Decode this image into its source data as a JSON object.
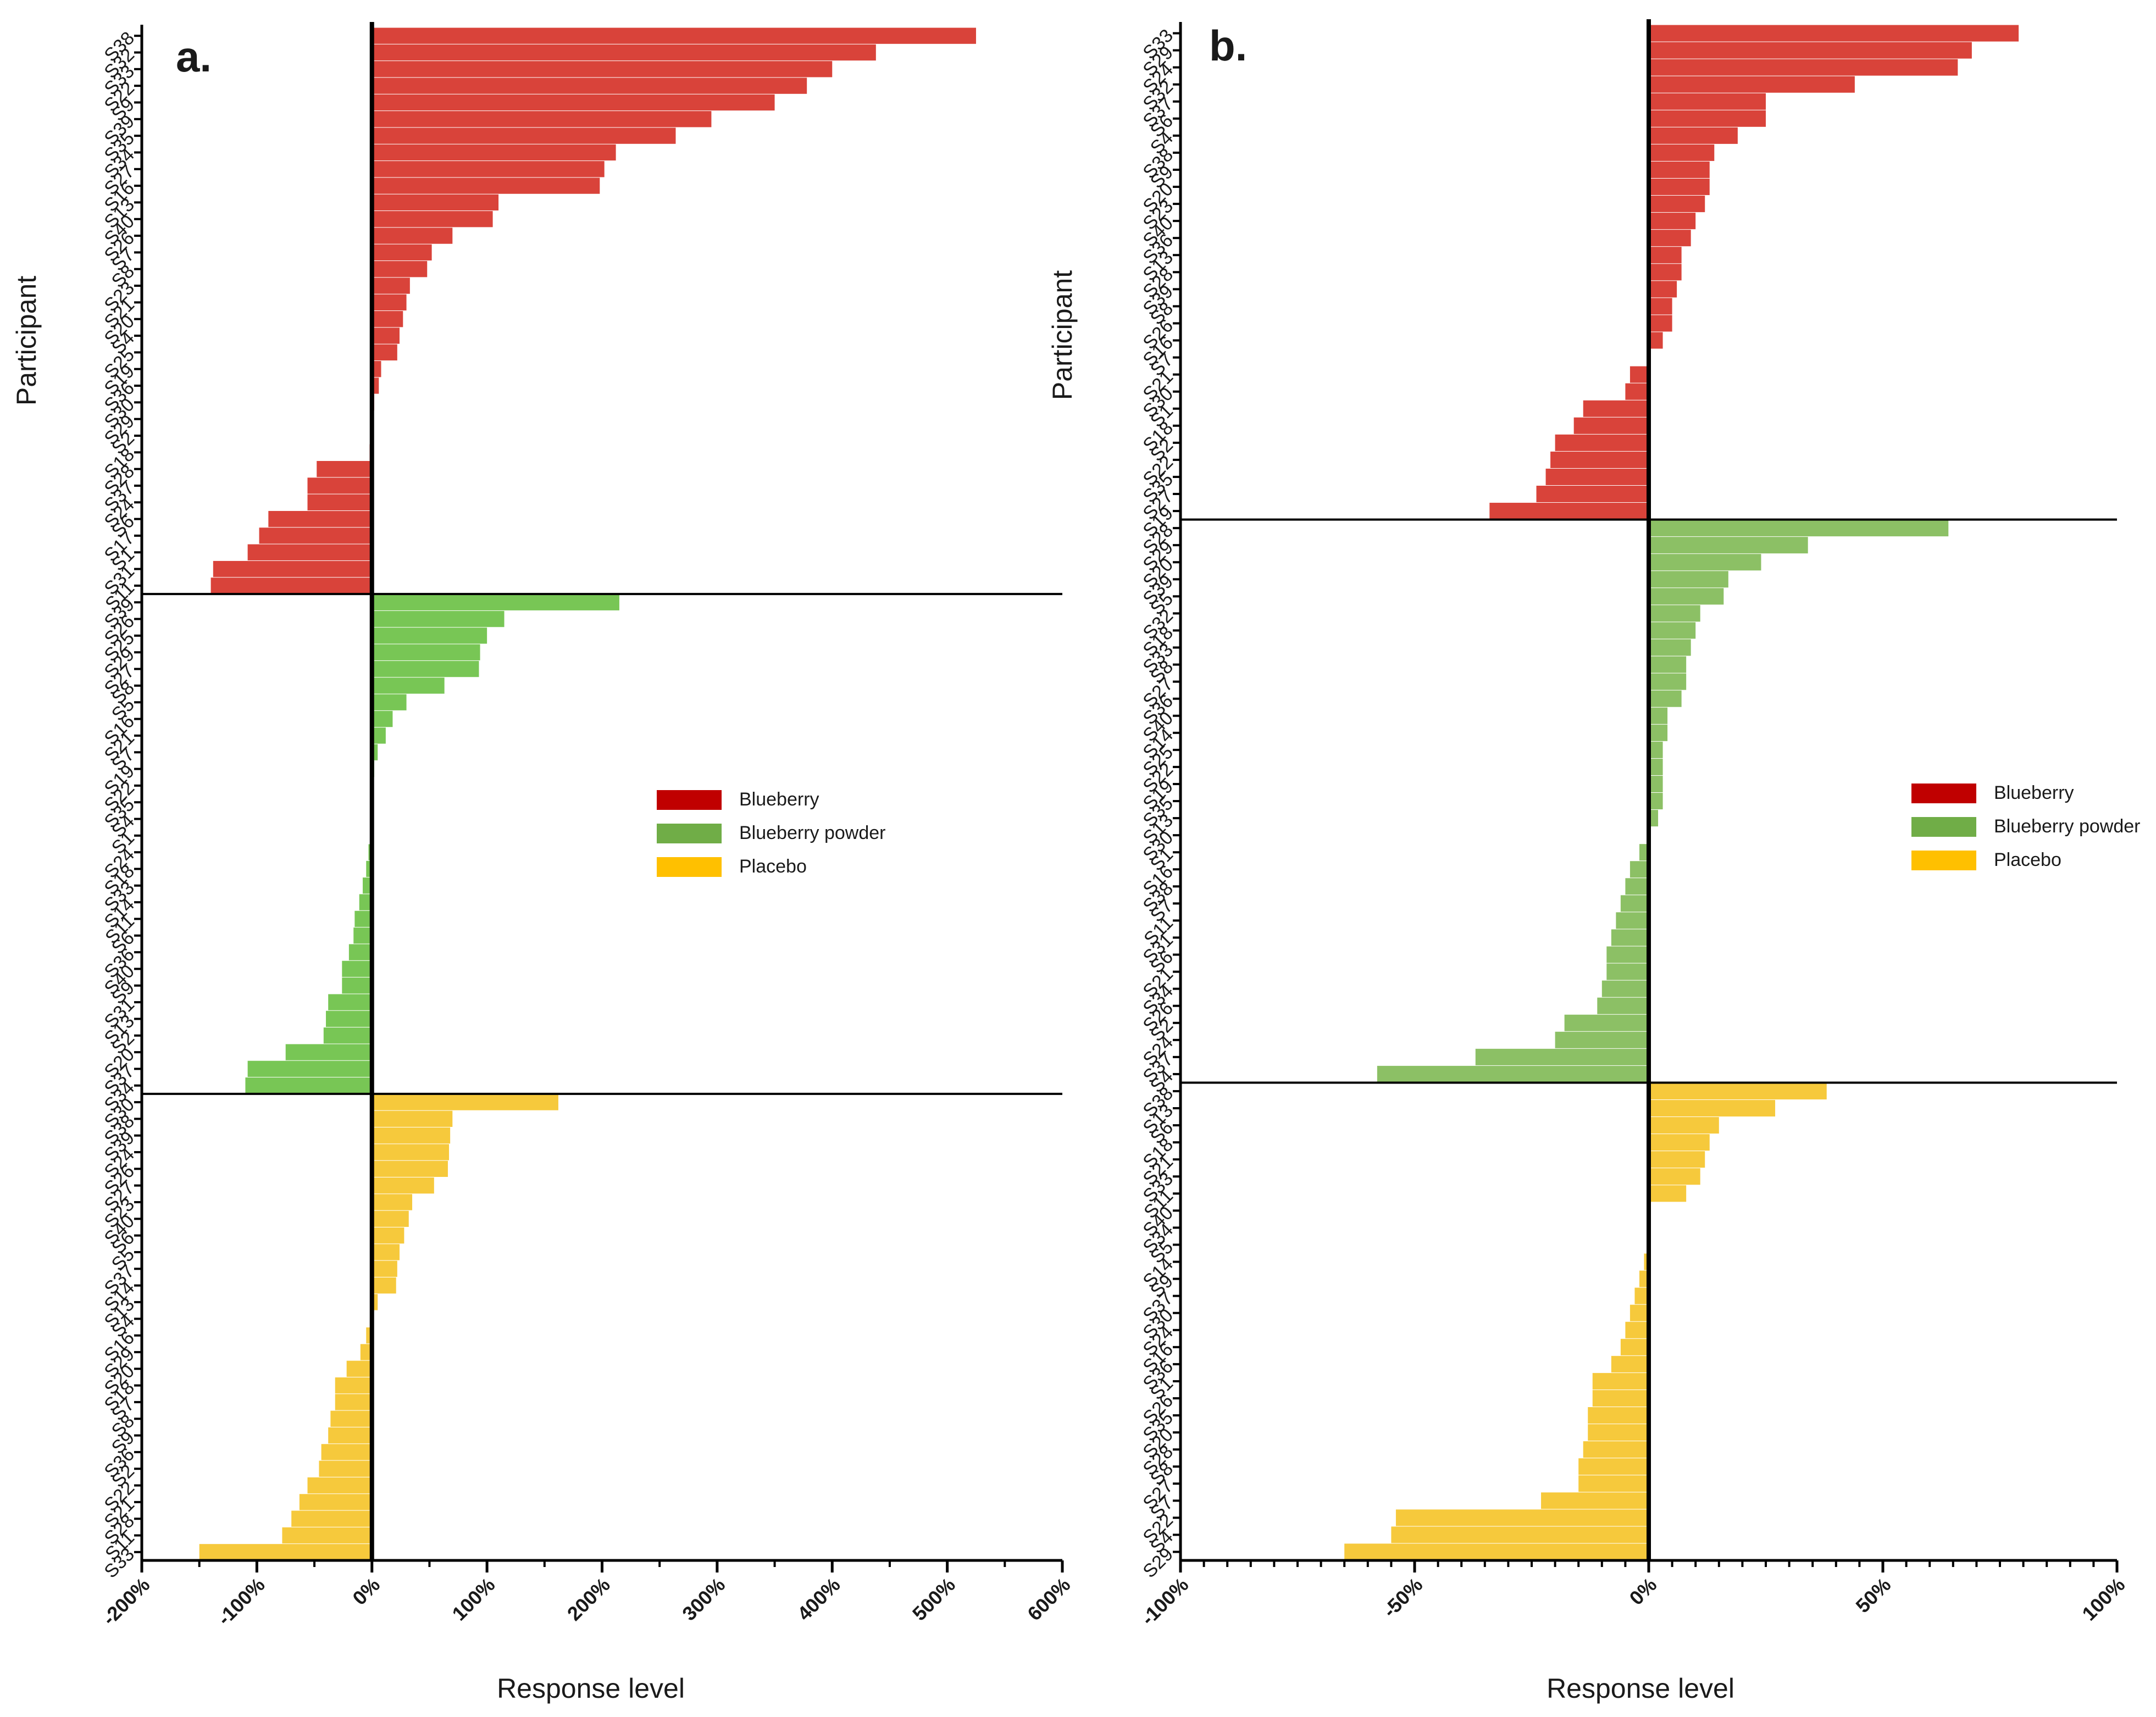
{
  "chart_data": [
    {
      "panel": "a.",
      "type": "bar",
      "orientation": "horizontal",
      "title": "",
      "xlabel": "Response level",
      "ylabel": "Participant",
      "xlim": [
        -200,
        600
      ],
      "xticks": [
        "-200%",
        "-100%",
        "0%",
        "100%",
        "200%",
        "300%",
        "400%",
        "500%",
        "600%"
      ],
      "legend": [
        "Blueberry",
        "Blueberry powder",
        "Placebo"
      ],
      "legend_position": "center-right",
      "colors": {
        "Blueberry": "#d9433a",
        "Blueberry powder": "#78c655",
        "Placebo": "#f6c93c"
      },
      "legend_colors": {
        "Blueberry": "#c00000",
        "Blueberry powder": "#70ad47",
        "Placebo": "#ffc000"
      },
      "groups": [
        {
          "name": "Blueberry",
          "participants": [
            "S38",
            "S32",
            "S33",
            "S22",
            "S9",
            "S39",
            "S35",
            "S34",
            "S27",
            "S16",
            "S13",
            "S40",
            "S26",
            "S7",
            "S8",
            "S23",
            "S21",
            "S20",
            "S4",
            "S25",
            "S19",
            "S36",
            "S30",
            "S29",
            "S2",
            "S18",
            "S28",
            "S37",
            "S24",
            "S6",
            "S17",
            "S1",
            "S31",
            "S11"
          ],
          "values": [
            525,
            438,
            400,
            378,
            350,
            295,
            264,
            212,
            202,
            198,
            110,
            105,
            70,
            52,
            48,
            33,
            30,
            27,
            24,
            22,
            8,
            6,
            2,
            1,
            0,
            -2,
            -48,
            -56,
            -56,
            -90,
            -98,
            -108,
            -138,
            -140
          ]
        },
        {
          "name": "Blueberry powder",
          "participants": [
            "S39",
            "S26",
            "S25",
            "S29",
            "S27",
            "S8",
            "S5",
            "S16",
            "S21",
            "S7",
            "S19",
            "S22",
            "S35",
            "S4",
            "S1",
            "S24",
            "S18",
            "S33",
            "S14",
            "S11",
            "S6",
            "S36",
            "S40",
            "S9",
            "S31",
            "S13",
            "S2",
            "S20",
            "S37",
            "S34"
          ],
          "values": [
            215,
            115,
            100,
            94,
            93,
            63,
            30,
            18,
            12,
            5,
            2,
            0,
            0,
            0,
            -1,
            -3,
            -5,
            -8,
            -11,
            -15,
            -16,
            -20,
            -26,
            -26,
            -38,
            -40,
            -42,
            -75,
            -108,
            -110
          ]
        },
        {
          "name": "Placebo",
          "participants": [
            "S30",
            "S38",
            "S39",
            "S24",
            "S26",
            "S27",
            "S23",
            "S40",
            "S6",
            "S5",
            "S37",
            "S14",
            "S13",
            "S4",
            "S16",
            "S29",
            "S20",
            "S18",
            "S7",
            "S8",
            "S9",
            "S36",
            "S2",
            "S22",
            "S21",
            "S28",
            "S11",
            "S33"
          ],
          "values": [
            162,
            70,
            68,
            67,
            66,
            54,
            35,
            32,
            28,
            24,
            22,
            21,
            5,
            0,
            -5,
            -10,
            -22,
            -32,
            -32,
            -36,
            -38,
            -44,
            -46,
            -56,
            -63,
            -70,
            -78,
            -150
          ]
        }
      ]
    },
    {
      "panel": "b.",
      "type": "bar",
      "orientation": "horizontal",
      "title": "",
      "xlabel": "Response level",
      "ylabel": "Participant",
      "xlim": [
        -100,
        100
      ],
      "xticks": [
        "-100%",
        "-50%",
        "0%",
        "50%",
        "100%"
      ],
      "legend": [
        "Blueberry",
        "Blueberry powder",
        "Placebo"
      ],
      "legend_position": "center-right",
      "colors": {
        "Blueberry": "#d9433a",
        "Blueberry powder": "#8cc065",
        "Placebo": "#f6c93c"
      },
      "legend_colors": {
        "Blueberry": "#c00000",
        "Blueberry powder": "#70ad47",
        "Placebo": "#ffc000"
      },
      "groups": [
        {
          "name": "Blueberry",
          "participants": [
            "S33",
            "S29",
            "S24",
            "S32",
            "S37",
            "S6",
            "S4",
            "S38",
            "S9",
            "S20",
            "S23",
            "S40",
            "S36",
            "S13",
            "S28",
            "S39",
            "S8",
            "S26",
            "S16",
            "S7",
            "S21",
            "S30",
            "S1",
            "S18",
            "S2",
            "S22",
            "S35",
            "S27",
            "S19"
          ],
          "values": [
            79,
            69,
            66,
            44,
            25,
            25,
            19,
            14,
            13,
            13,
            12,
            10,
            9,
            7,
            7,
            6,
            5,
            5,
            3,
            0,
            -4,
            -5,
            -14,
            -16,
            -20,
            -21,
            -22,
            -24,
            -34
          ]
        },
        {
          "name": "Blueberry powder",
          "participants": [
            "S28",
            "S29",
            "S20",
            "S39",
            "S5",
            "S32",
            "S18",
            "S33",
            "S8",
            "S27",
            "S36",
            "S40",
            "S14",
            "S25",
            "S22",
            "S19",
            "S35",
            "S13",
            "S30",
            "S1",
            "S16",
            "S38",
            "S7",
            "S11",
            "S31",
            "S6",
            "S21",
            "S34",
            "S26",
            "S2",
            "S24",
            "S37",
            "S4"
          ],
          "values": [
            64,
            34,
            24,
            17,
            16,
            11,
            10,
            9,
            8,
            8,
            7,
            4,
            4,
            3,
            3,
            3,
            3,
            2,
            0,
            -2,
            -4,
            -5,
            -6,
            -7,
            -8,
            -9,
            -9,
            -10,
            -11,
            -18,
            -20,
            -37,
            -58
          ]
        },
        {
          "name": "Placebo",
          "participants": [
            "S38",
            "S13",
            "S6",
            "S18",
            "S21",
            "S33",
            "S11",
            "S40",
            "S34",
            "S5",
            "S14",
            "S9",
            "S37",
            "S30",
            "S24",
            "S16",
            "S36",
            "S1",
            "S26",
            "S35",
            "S20",
            "S28",
            "S8",
            "S27",
            "S7",
            "S22",
            "S4",
            "S29"
          ],
          "values": [
            38,
            27,
            15,
            13,
            12,
            11,
            8,
            0,
            0,
            0,
            -1,
            -2,
            -3,
            -4,
            -5,
            -6,
            -8,
            -12,
            -12,
            -13,
            -13,
            -14,
            -15,
            -15,
            -23,
            -54,
            -55,
            -65
          ]
        }
      ]
    }
  ]
}
